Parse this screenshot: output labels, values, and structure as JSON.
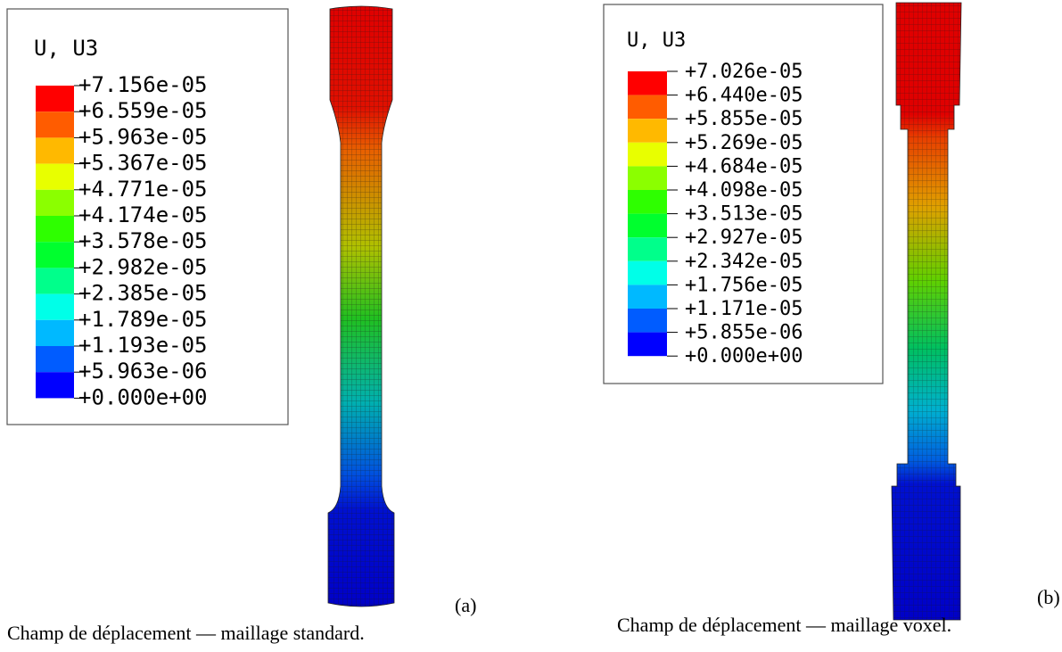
{
  "panels": [
    {
      "legend_title": "U, U3",
      "legend_labels": [
        "+7.156e-05",
        "+6.559e-05",
        "+5.963e-05",
        "+5.367e-05",
        "+4.771e-05",
        "+4.174e-05",
        "+3.578e-05",
        "+2.982e-05",
        "+2.385e-05",
        "+1.789e-05",
        "+1.193e-05",
        "+5.963e-06",
        "+0.000e+00"
      ],
      "panel_label": "(a)",
      "caption": "Champ de déplacement — maillage standard."
    },
    {
      "legend_title": "U, U3",
      "legend_labels": [
        "+7.026e-05",
        "+6.440e-05",
        "+5.855e-05",
        "+5.269e-05",
        "+4.684e-05",
        "+4.098e-05",
        "+3.513e-05",
        "+2.927e-05",
        "+2.342e-05",
        "+1.756e-05",
        "+1.171e-05",
        "+5.855e-06",
        "+0.000e+00"
      ],
      "panel_label": "(b)",
      "caption": "Champ de déplacement — maillage voxel."
    }
  ]
}
